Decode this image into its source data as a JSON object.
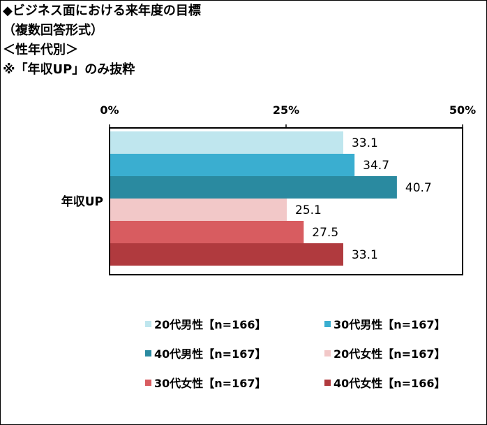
{
  "title_lines": [
    "◆ビジネス面における来年度の目標",
    "（複数回答形式）",
    "＜性年代別＞",
    "※「年収UP」のみ抜粋"
  ],
  "chart_data": {
    "type": "bar",
    "orientation": "horizontal",
    "categories": [
      "年収UP"
    ],
    "xlim": [
      0,
      50
    ],
    "x_ticks": [
      "0%",
      "25%",
      "50%"
    ],
    "series": [
      {
        "name": "20代男性【n=166】",
        "values": [
          33.1
        ],
        "color": "#bfe6ee"
      },
      {
        "name": "30代男性【n=167】",
        "values": [
          34.7
        ],
        "color": "#3aaed0"
      },
      {
        "name": "40代男性【n=167】",
        "values": [
          40.7
        ],
        "color": "#2a8aa0"
      },
      {
        "name": "20代女性【n=167】",
        "values": [
          25.1
        ],
        "color": "#f2c8c8"
      },
      {
        "name": "30代女性【n=167】",
        "values": [
          27.5
        ],
        "color": "#d85c60"
      },
      {
        "name": "40代女性【n=166】",
        "values": [
          33.1
        ],
        "color": "#b03a3e"
      }
    ],
    "data_labels": [
      "33.1",
      "34.7",
      "40.7",
      "25.1",
      "27.5",
      "33.1"
    ],
    "legend_position": "bottom",
    "grid": false
  }
}
